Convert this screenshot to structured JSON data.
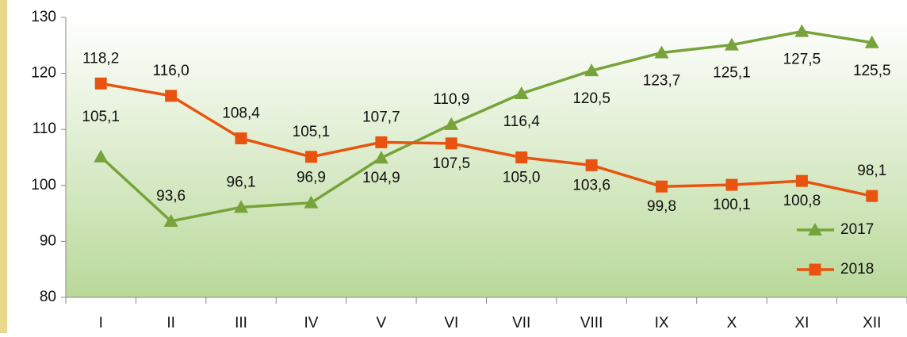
{
  "chart_data": {
    "type": "line",
    "categories": [
      "I",
      "II",
      "III",
      "IV",
      "V",
      "VI",
      "VII",
      "VIII",
      "IX",
      "X",
      "XI",
      "XII"
    ],
    "series": [
      {
        "name": "2017",
        "color": "#77a33a",
        "marker": "triangle",
        "values": [
          105.1,
          93.6,
          96.1,
          96.9,
          104.9,
          110.9,
          116.4,
          120.5,
          123.7,
          125.1,
          127.5,
          125.5
        ],
        "value_labels": [
          "105,1",
          "93,6",
          "96,1",
          "96,9",
          "104,9",
          "110,9",
          "116,4",
          "120,5",
          "123,7",
          "125,1",
          "127,5",
          "125,5"
        ]
      },
      {
        "name": "2018",
        "color": "#e8540f",
        "marker": "square",
        "values": [
          118.2,
          116.0,
          108.4,
          105.1,
          107.7,
          107.5,
          105.0,
          103.6,
          99.8,
          100.1,
          100.8,
          98.1
        ],
        "value_labels": [
          "118,2",
          "116,0",
          "108,4",
          "105,1",
          "107,7",
          "107,5",
          "105,0",
          "103,6",
          "99,8",
          "100,1",
          "100,8",
          "98,1"
        ]
      }
    ],
    "ylim": [
      80,
      130
    ],
    "yticks": [
      80,
      90,
      100,
      110,
      120,
      130
    ],
    "legend": "right"
  }
}
